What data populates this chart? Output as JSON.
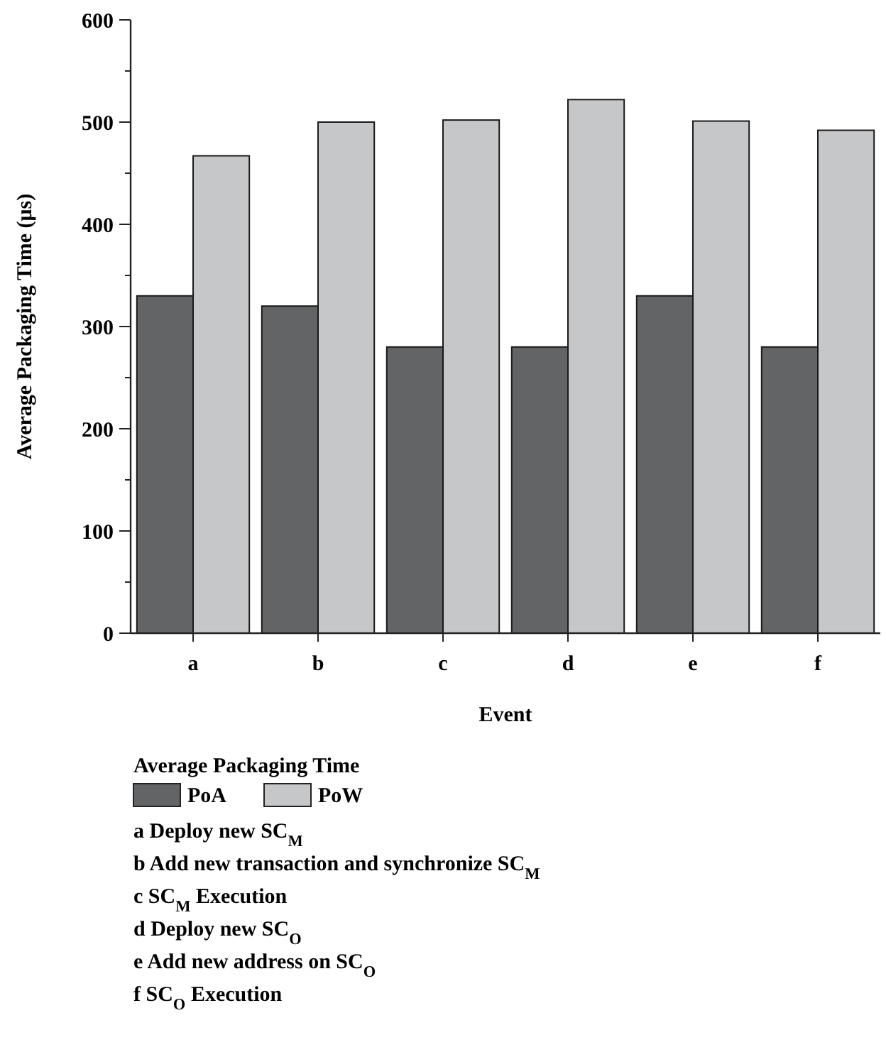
{
  "chart_data": {
    "type": "bar",
    "xlabel": "Event",
    "ylabel": "Average Packaging Time (μs)",
    "categories": [
      "a",
      "b",
      "c",
      "d",
      "e",
      "f"
    ],
    "series": [
      {
        "name": "PoA",
        "color": "#636466",
        "values": [
          330,
          320,
          280,
          280,
          330,
          280
        ]
      },
      {
        "name": "PoW",
        "color": "#c6c7c9",
        "values": [
          467,
          500,
          502,
          522,
          501,
          492
        ]
      }
    ],
    "ylim": [
      0,
      600
    ],
    "yticks": [
      0,
      {
        "value": 50,
        "label": null
      },
      100,
      {
        "value": 150,
        "label": null
      },
      200,
      {
        "value": 250,
        "label": null
      },
      300,
      {
        "value": 350,
        "label": null
      },
      400,
      {
        "value": 450,
        "label": null
      },
      500,
      {
        "value": 550,
        "label": null
      },
      600
    ],
    "legend": "bottom",
    "legend_title": "Average Packaging Time",
    "grid": false,
    "annotations": [
      "a Deploy new SC$_{M}$",
      "b Add new transaction and synchronize SC$_{M}$",
      "c SC$_{M}$ Execution",
      "d Deploy new SC$_{O}$",
      "e Add new address on SC$_{O}$",
      "f SC$_{O}$ Execution"
    ]
  }
}
